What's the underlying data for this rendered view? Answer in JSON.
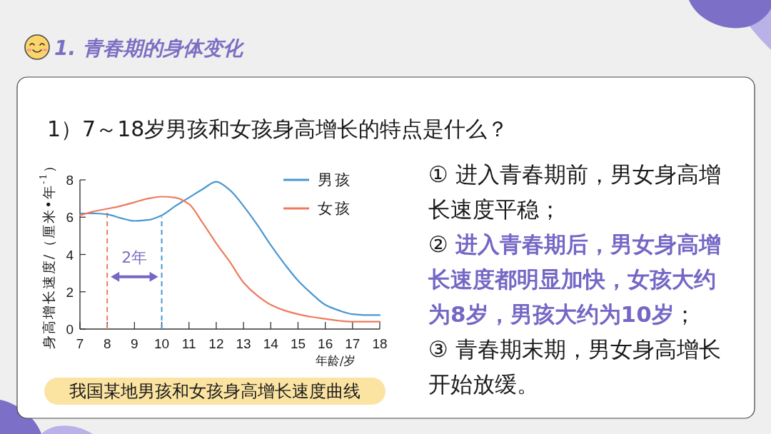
{
  "chart_data": {
    "type": "line",
    "title": "1. 青春期的身体变化",
    "subtitle": "1）7～18岁男孩和女孩身高增长的特点是什么？",
    "xlabel": "年龄/岁",
    "ylabel": "身高增长速度/（厘米•年$^{-1}$）",
    "x": [
      7,
      7.5,
      8,
      8.5,
      9,
      9.5,
      10,
      10.5,
      11,
      11.5,
      12,
      12.5,
      13,
      13.5,
      14,
      14.5,
      15,
      15.5,
      16,
      16.5,
      17,
      17.5,
      18
    ],
    "series": [
      {
        "name": "男孩",
        "color": "#4a97d0",
        "values": [
          6.2,
          6.2,
          6.15,
          5.95,
          5.8,
          5.85,
          6.1,
          6.6,
          7.05,
          7.5,
          7.9,
          7.45,
          6.6,
          5.6,
          4.5,
          3.5,
          2.6,
          1.9,
          1.3,
          1.0,
          0.8,
          0.75,
          0.75
        ]
      },
      {
        "name": "女孩",
        "color": "#ee7b5d",
        "values": [
          6.1,
          6.3,
          6.45,
          6.6,
          6.8,
          7.0,
          7.1,
          7.05,
          6.7,
          5.7,
          4.6,
          3.6,
          2.5,
          1.8,
          1.3,
          1.0,
          0.8,
          0.65,
          0.55,
          0.45,
          0.4,
          0.4,
          0.4
        ]
      }
    ],
    "xlim": [
      7,
      18
    ],
    "ylim": [
      0,
      8
    ],
    "xticks": [
      7,
      8,
      9,
      10,
      11,
      12,
      13,
      14,
      15,
      16,
      17,
      18
    ],
    "yticks": [
      0,
      2,
      4,
      6,
      8
    ],
    "ref_lines": [
      {
        "axis": "x",
        "value": 8,
        "color": "#ee7b5d",
        "line_style": "dashed"
      },
      {
        "axis": "x",
        "value": 10,
        "color": "#4a97d0",
        "line_style": "dashed"
      }
    ],
    "legend": "top right",
    "annotations": [
      "2年",
      "我国某地男孩和女孩身高增长速度曲线",
      "① 进入青春期前，男女身高增长速度平稳；",
      "② **进入青春期后，男女身高增长速度都明显加快，女孩大约为8岁，男孩大约为10岁**；",
      "③ 青春期末期，男女身高增长开始放缓。"
    ]
  }
}
